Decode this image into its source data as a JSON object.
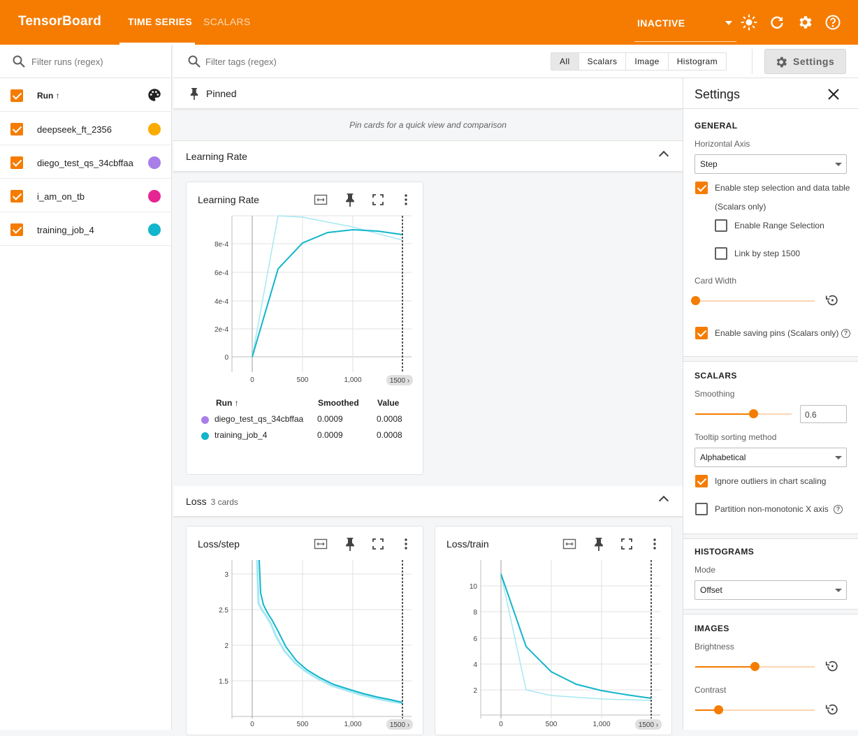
{
  "header": {
    "brand": "TensorBoard",
    "tabs": [
      {
        "label": "TIME SERIES"
      },
      {
        "label": "SCALARS"
      }
    ],
    "status": "INACTIVE",
    "accent": "#f57c00"
  },
  "runs": {
    "filter_placeholder": "Filter runs (regex)",
    "column_label": "Run ↑",
    "items": [
      {
        "name": "deepseek_ft_2356",
        "color": "#f9ab00"
      },
      {
        "name": "diego_test_qs_34cbffaa",
        "color": "#a87ee8"
      },
      {
        "name": "i_am_on_tb",
        "color": "#e52592"
      },
      {
        "name": "training_job_4",
        "color": "#12b5cb"
      }
    ]
  },
  "tags": {
    "filter_placeholder": "Filter tags (regex)",
    "types": [
      "All",
      "Scalars",
      "Image",
      "Histogram"
    ],
    "settings_label": "Settings"
  },
  "pinned": {
    "title": "Pinned",
    "empty_text": "Pin cards for a quick view and comparison"
  },
  "sections": {
    "learning_rate": {
      "title": "Learning Rate"
    },
    "loss": {
      "title": "Loss",
      "subtitle": "3 cards"
    }
  },
  "cards": {
    "lr": {
      "title": "Learning Rate",
      "y_ticks": [
        "8e-4",
        "6e-4",
        "4e-4",
        "2e-4",
        "0"
      ],
      "x_ticks": [
        "0",
        "500",
        "1,000"
      ],
      "x_cursor_label": "1500 ›",
      "tooltip": {
        "headers": [
          "Run ↑",
          "Smoothed",
          "Value"
        ],
        "rows": [
          {
            "run": "diego_test_qs_34cbffaa",
            "smoothed": "0.0009",
            "value": "0.0008",
            "color": "#a87ee8"
          },
          {
            "run": "training_job_4",
            "smoothed": "0.0009",
            "value": "0.0008",
            "color": "#12b5cb"
          }
        ]
      }
    },
    "loss_step": {
      "title": "Loss/step",
      "y_ticks": [
        "3",
        "2.5",
        "2",
        "1.5"
      ],
      "x_ticks": [
        "0",
        "500",
        "1,000"
      ],
      "x_cursor_label": "1500 ›"
    },
    "loss_train": {
      "title": "Loss/train",
      "y_ticks": [
        "10",
        "8",
        "6",
        "4",
        "2"
      ],
      "x_ticks": [
        "0",
        "500",
        "1,000"
      ],
      "x_cursor_label": "1500 ›"
    }
  },
  "settings": {
    "title": "Settings",
    "general": {
      "heading": "GENERAL",
      "horizontal_axis_label": "Horizontal Axis",
      "horizontal_axis_value": "Step",
      "step_selection_label": "Enable step selection and data table",
      "step_selection_sub": "(Scalars only)",
      "range_selection_label": "Enable Range Selection",
      "link_by_step_label": "Link by step 1500",
      "card_width_label": "Card Width",
      "saving_pins_label": "Enable saving pins (Scalars only)"
    },
    "scalars": {
      "heading": "SCALARS",
      "smoothing_label": "Smoothing",
      "smoothing_value": "0.6",
      "tooltip_sort_label": "Tooltip sorting method",
      "tooltip_sort_value": "Alphabetical",
      "ignore_outliers_label": "Ignore outliers in chart scaling",
      "partition_label": "Partition non-monotonic X axis"
    },
    "histograms": {
      "heading": "HISTOGRAMS",
      "mode_label": "Mode",
      "mode_value": "Offset"
    },
    "images": {
      "heading": "IMAGES",
      "brightness_label": "Brightness",
      "contrast_label": "Contrast"
    }
  }
}
